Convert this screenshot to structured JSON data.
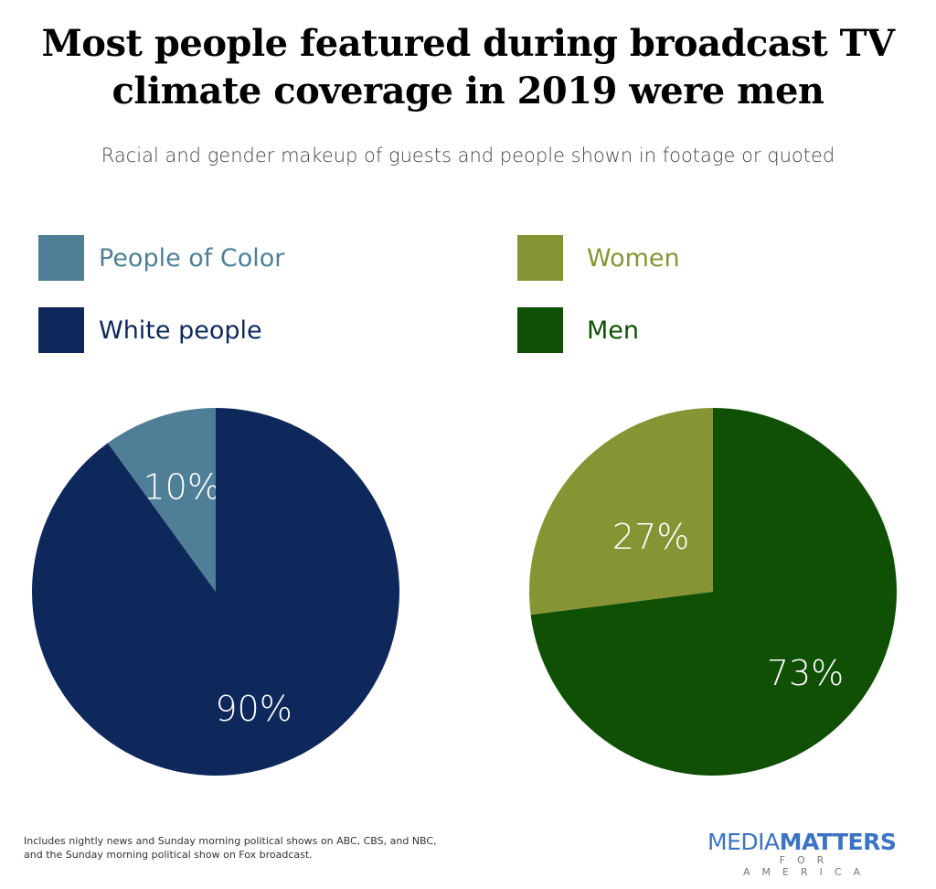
{
  "title_line1": "Most people featured during broadcast TV",
  "title_line2": "climate coverage in 2019 were men",
  "subtitle": "Racial and gender makeup of guests and people shown in footage or quoted",
  "footnote_line1": "Includes nightly news and Sunday morning political shows on ABC, CBS, and NBC,",
  "footnote_line2": "and the Sunday morning political show on Fox broadcast.",
  "logo": {
    "part1": "MEDIA",
    "part2": "MATTERS",
    "part3": "FOR AMERICA"
  },
  "chart_data": [
    {
      "type": "pie",
      "slices": [
        {
          "name": "People of Color",
          "value": 10,
          "label": "10%",
          "color": "#4e7f96"
        },
        {
          "name": "White people",
          "value": 90,
          "label": "90%",
          "color": "#0e285c"
        }
      ]
    },
    {
      "type": "pie",
      "slices": [
        {
          "name": "Women",
          "value": 27,
          "label": "27%",
          "color": "#879434"
        },
        {
          "name": "Men",
          "value": 73,
          "label": "73%",
          "color": "#0f5005"
        }
      ]
    }
  ]
}
